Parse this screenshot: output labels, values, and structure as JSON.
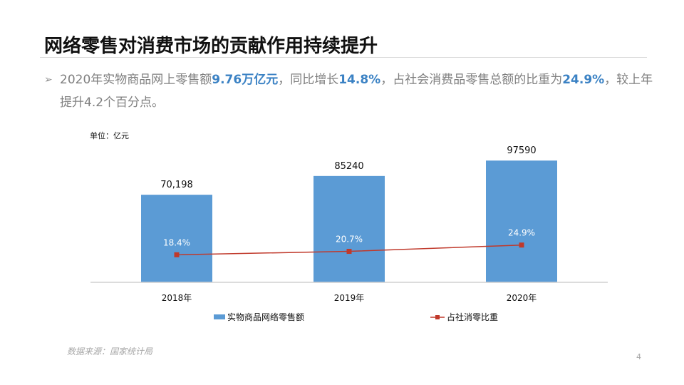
{
  "slide": {
    "title": "网络零售对消费市场的贡献作用持续提升",
    "bullet_icon": "arrow-right-icon",
    "bullet_parts": [
      {
        "text": "2020年实物商品网上零售额",
        "highlight": false
      },
      {
        "text": "9.76万亿元",
        "highlight": true
      },
      {
        "text": "，同比增长",
        "highlight": false
      },
      {
        "text": "14.8%",
        "highlight": true
      },
      {
        "text": "，占社会消费品零售总额的比重为",
        "highlight": false
      },
      {
        "text": "24.9%",
        "highlight": true
      },
      {
        "text": "，较上年提升4.2个百分点。",
        "highlight": false
      }
    ],
    "source": "数据来源：国家统计局",
    "page_number": "4"
  },
  "chart_data": {
    "type": "bar",
    "unit_label": "单位：亿元",
    "categories": [
      "2018年",
      "2019年",
      "2020年"
    ],
    "series": [
      {
        "name": "实物商品网络零售额",
        "type": "bar",
        "values": [
          70198,
          85240,
          97590
        ],
        "labels": [
          "70,198",
          "85240",
          "97590"
        ],
        "color": "#5b9bd5",
        "axis": "primary"
      },
      {
        "name": "占社消零比重",
        "type": "line",
        "values": [
          18.4,
          20.7,
          24.9
        ],
        "labels": [
          "18.4%",
          "20.7%",
          "24.9%"
        ],
        "color": "#c0392b",
        "marker": "square",
        "axis": "secondary"
      }
    ],
    "ylim": [
      0,
      120000
    ],
    "y2lim": [
      0,
      100
    ],
    "grid": false,
    "legend": "bottom",
    "highlight_color": "#3b82c4"
  }
}
